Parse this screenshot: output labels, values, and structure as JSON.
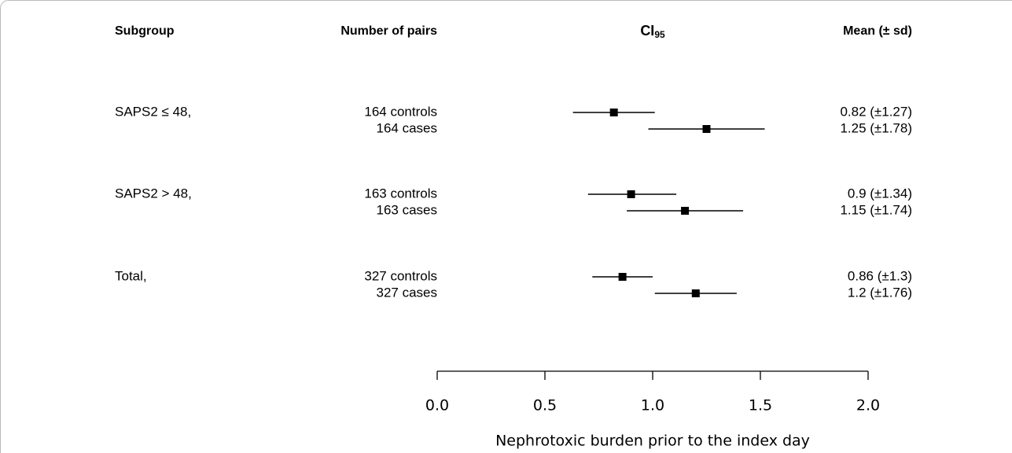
{
  "chart_data": {
    "type": "forest",
    "headers": {
      "subgroup": "Subgroup",
      "pairs": "Number of pairs",
      "ci": {
        "text": "CI",
        "subscript": "95"
      },
      "mean": "Mean (± sd)"
    },
    "groups": [
      {
        "name": "SAPS2  ≤ 48,",
        "rows": [
          {
            "pairs": "164 controls",
            "value": 0.82,
            "ci": [
              0.63,
              1.01
            ],
            "value_label": "0.82 (±1.27)"
          },
          {
            "pairs": "164 cases",
            "value": 1.25,
            "ci": [
              0.98,
              1.52
            ],
            "value_label": "1.25 (±1.78)"
          }
        ]
      },
      {
        "name": "SAPS2 > 48,",
        "rows": [
          {
            "pairs": "163 controls",
            "value": 0.9,
            "ci": [
              0.7,
              1.11
            ],
            "value_label": "0.9 (±1.34)"
          },
          {
            "pairs": "163 cases",
            "value": 1.15,
            "ci": [
              0.88,
              1.42
            ],
            "value_label": "1.15 (±1.74)"
          }
        ]
      },
      {
        "name": "Total,",
        "rows": [
          {
            "pairs": "327 controls",
            "value": 0.86,
            "ci": [
              0.72,
              1.0
            ],
            "value_label": "0.86 (±1.3)"
          },
          {
            "pairs": "327 cases",
            "value": 1.2,
            "ci": [
              1.01,
              1.39
            ],
            "value_label": "1.2 (±1.76)"
          }
        ]
      }
    ],
    "color": "#000000",
    "xlabel": "Nephrotoxic burden prior to the index day",
    "xlim": [
      0,
      2
    ],
    "xticks": [
      {
        "value": 0,
        "label": "0.0"
      },
      {
        "value": 0.5,
        "label": "0.5"
      },
      {
        "value": 1,
        "label": "1.0"
      },
      {
        "value": 1.5,
        "label": "1.5"
      },
      {
        "value": 2,
        "label": "2.0"
      }
    ]
  }
}
